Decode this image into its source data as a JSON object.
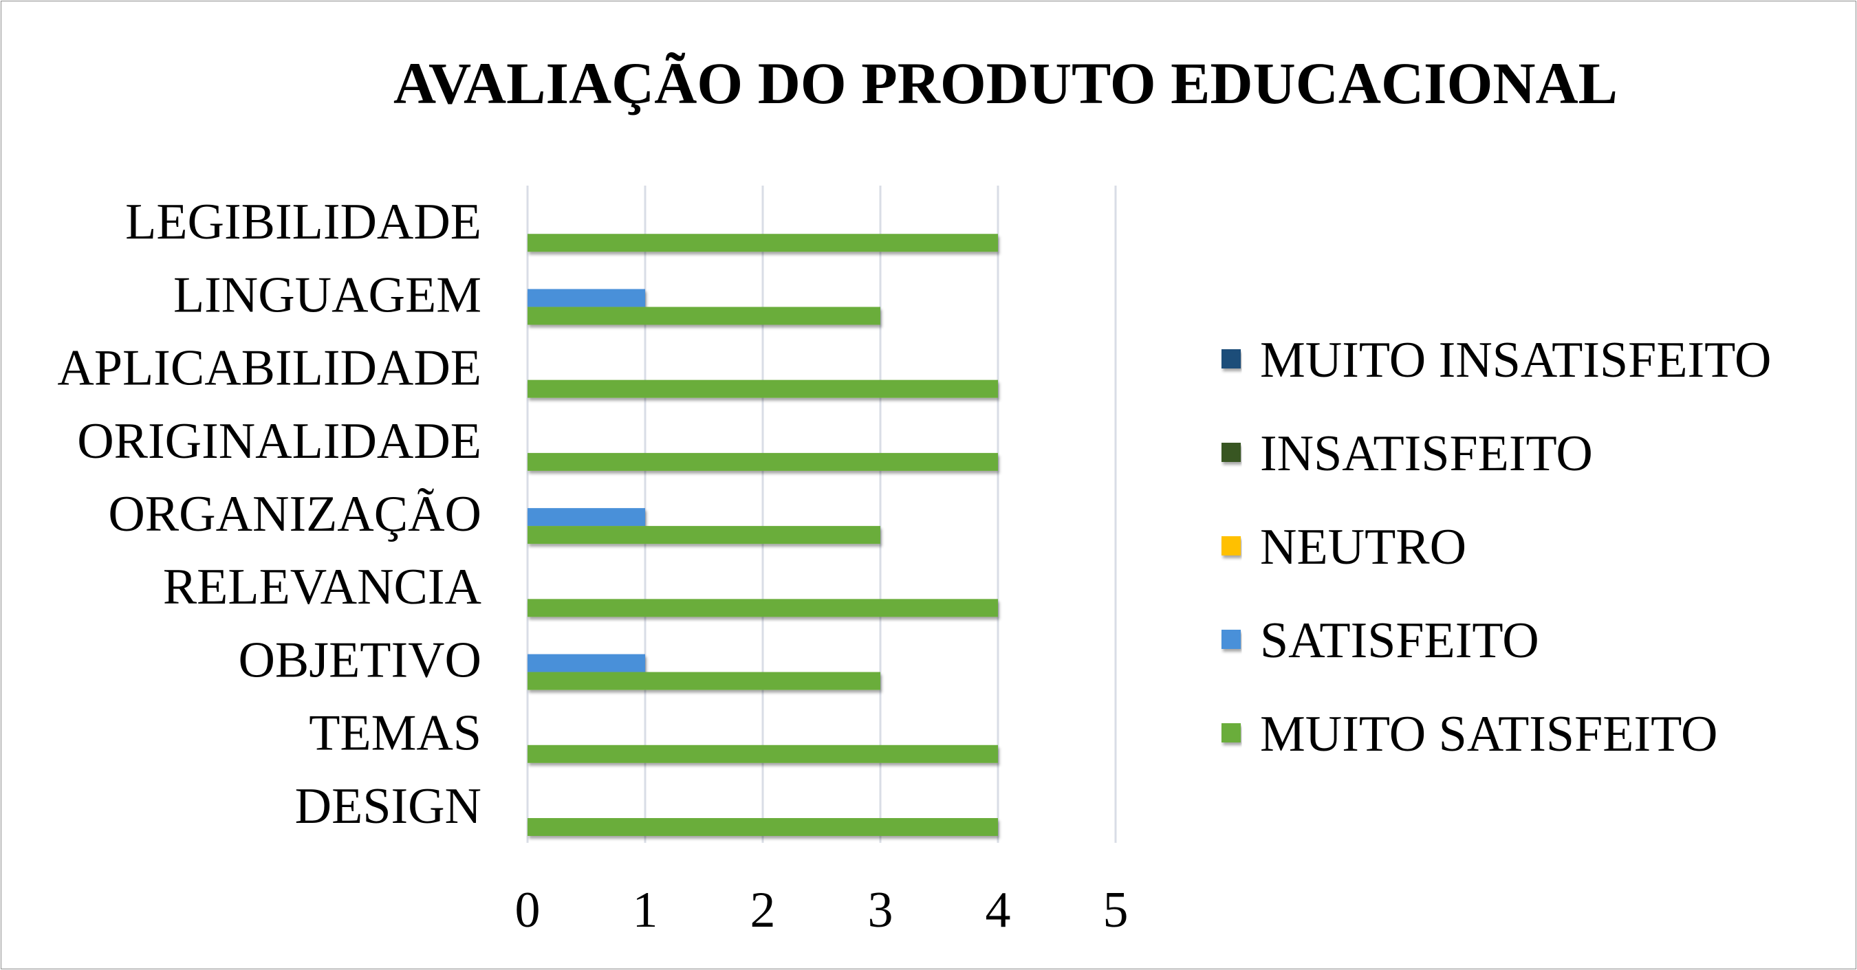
{
  "chart_data": {
    "type": "bar",
    "orientation": "horizontal",
    "title": "AVALIAÇÃO DO PRODUTO EDUCACIONAL",
    "categories": [
      "DESIGN",
      "TEMAS",
      "OBJETIVO",
      "RELEVANCIA",
      "ORGANIZAÇÃO",
      "ORIGINALIDADE",
      "APLICABILIDADE",
      "LINGUAGEM",
      "LEGIBILIDADE"
    ],
    "series": [
      {
        "name": "MUITO INSATISFEITO",
        "color": "#1f4e79",
        "values": [
          0,
          0,
          0,
          0,
          0,
          0,
          0,
          0,
          0
        ]
      },
      {
        "name": "INSATISFEITO",
        "color": "#375623",
        "values": [
          0,
          0,
          0,
          0,
          0,
          0,
          0,
          0,
          0
        ]
      },
      {
        "name": "NEUTRO",
        "color": "#ffc000",
        "values": [
          0,
          0,
          0,
          0,
          0,
          0,
          0,
          0,
          0
        ]
      },
      {
        "name": "SATISFEITO",
        "color": "#4a90d9",
        "values": [
          0,
          0,
          1,
          0,
          1,
          0,
          0,
          1,
          0
        ]
      },
      {
        "name": "MUITO SATISFEITO",
        "color": "#6aad3a",
        "values": [
          4,
          4,
          3,
          4,
          3,
          4,
          4,
          3,
          4
        ]
      }
    ],
    "xlim": [
      0,
      5
    ],
    "xticks": [
      "0",
      "1",
      "2",
      "3",
      "4",
      "5"
    ],
    "grid": "vertical",
    "legend_position": "right"
  }
}
